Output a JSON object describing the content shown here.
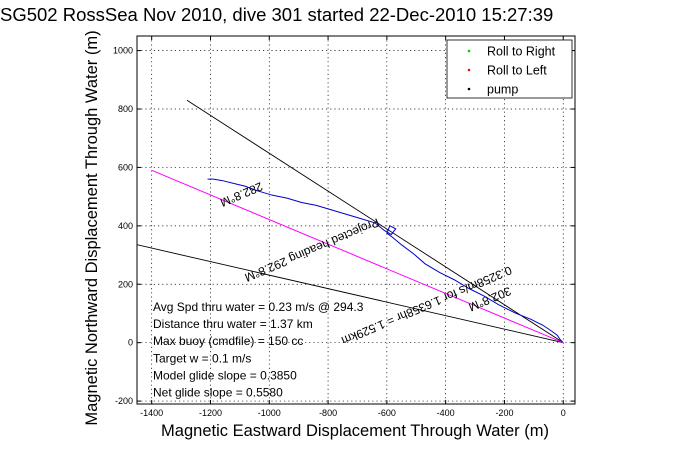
{
  "chart_data": {
    "type": "line",
    "title": "SG502 RossSea Nov 2010, dive 301 started 22-Dec-2010 15:27:39",
    "xlabel": "Magnetic Eastward Displacement Through Water (m)",
    "ylabel": "Magnetic Northward Displacement Through Water (m)",
    "xlim": [
      -1450,
      40
    ],
    "ylim": [
      -210,
      1050
    ],
    "xticks": [
      -1400,
      -1200,
      -1000,
      -800,
      -600,
      -400,
      -200,
      0
    ],
    "yticks": [
      -200,
      0,
      200,
      400,
      600,
      800,
      1000
    ],
    "grid": true,
    "legend_position": "top-right",
    "legend": [
      {
        "label": "Roll to Right",
        "color": "#00cc00",
        "marker": "."
      },
      {
        "label": "Roll to Left",
        "color": "#ff0000",
        "marker": "."
      },
      {
        "label": "pump",
        "color": "#000000",
        "marker": "."
      }
    ],
    "series": [
      {
        "color": "#0000cc",
        "x": [
          0,
          -10,
          -20,
          -40,
          -70,
          -110,
          -160,
          -220,
          -270,
          -320,
          -370,
          -420,
          -470,
          -510,
          -550,
          -580,
          -600,
          -590,
          -570,
          -585,
          -610,
          -640,
          -690,
          -740,
          -790,
          -840,
          -890,
          -940,
          -990,
          -1040,
          -1080,
          -1120,
          -1160,
          -1190,
          -1210
        ],
        "y": [
          0,
          10,
          25,
          40,
          60,
          80,
          100,
          130,
          160,
          185,
          215,
          240,
          270,
          305,
          335,
          360,
          375,
          400,
          390,
          370,
          385,
          410,
          425,
          440,
          455,
          470,
          480,
          495,
          505,
          520,
          535,
          545,
          555,
          560,
          560
        ]
      },
      {
        "color": "#ff00ff",
        "x": [
          0,
          -1400
        ],
        "y": [
          0,
          590
        ]
      }
    ],
    "reference_lines": [
      {
        "color": "#000000",
        "x": [
          0,
          -1280
        ],
        "y": [
          0,
          830
        ]
      },
      {
        "color": "#000000",
        "x": [
          0,
          -1470
        ],
        "y": [
          0,
          340
        ]
      }
    ],
    "line_annotations": [
      {
        "text": "282.8°M",
        "x": -1100,
        "y": 520,
        "angle_deg": 157
      },
      {
        "text": "Projected heading 292.8°M",
        "x": -860,
        "y": 330,
        "angle_deg": 157
      },
      {
        "text": "0.3258m/s for 1.6358hr = 1.529km",
        "x": -470,
        "y": 140,
        "angle_deg": 157
      },
      {
        "text": "302.8°M",
        "x": -255,
        "y": 162,
        "angle_deg": 157
      }
    ],
    "stats": [
      "Avg Spd thru water =  0.23 m/s @ 294.3",
      "Distance thru water =  1.37 km",
      "Max buoy (cmdfile) = 150 cc",
      "Target w = 0.1 m/s",
      "Model glide slope = 0.3850",
      "Net glide slope = 0.5580"
    ]
  }
}
